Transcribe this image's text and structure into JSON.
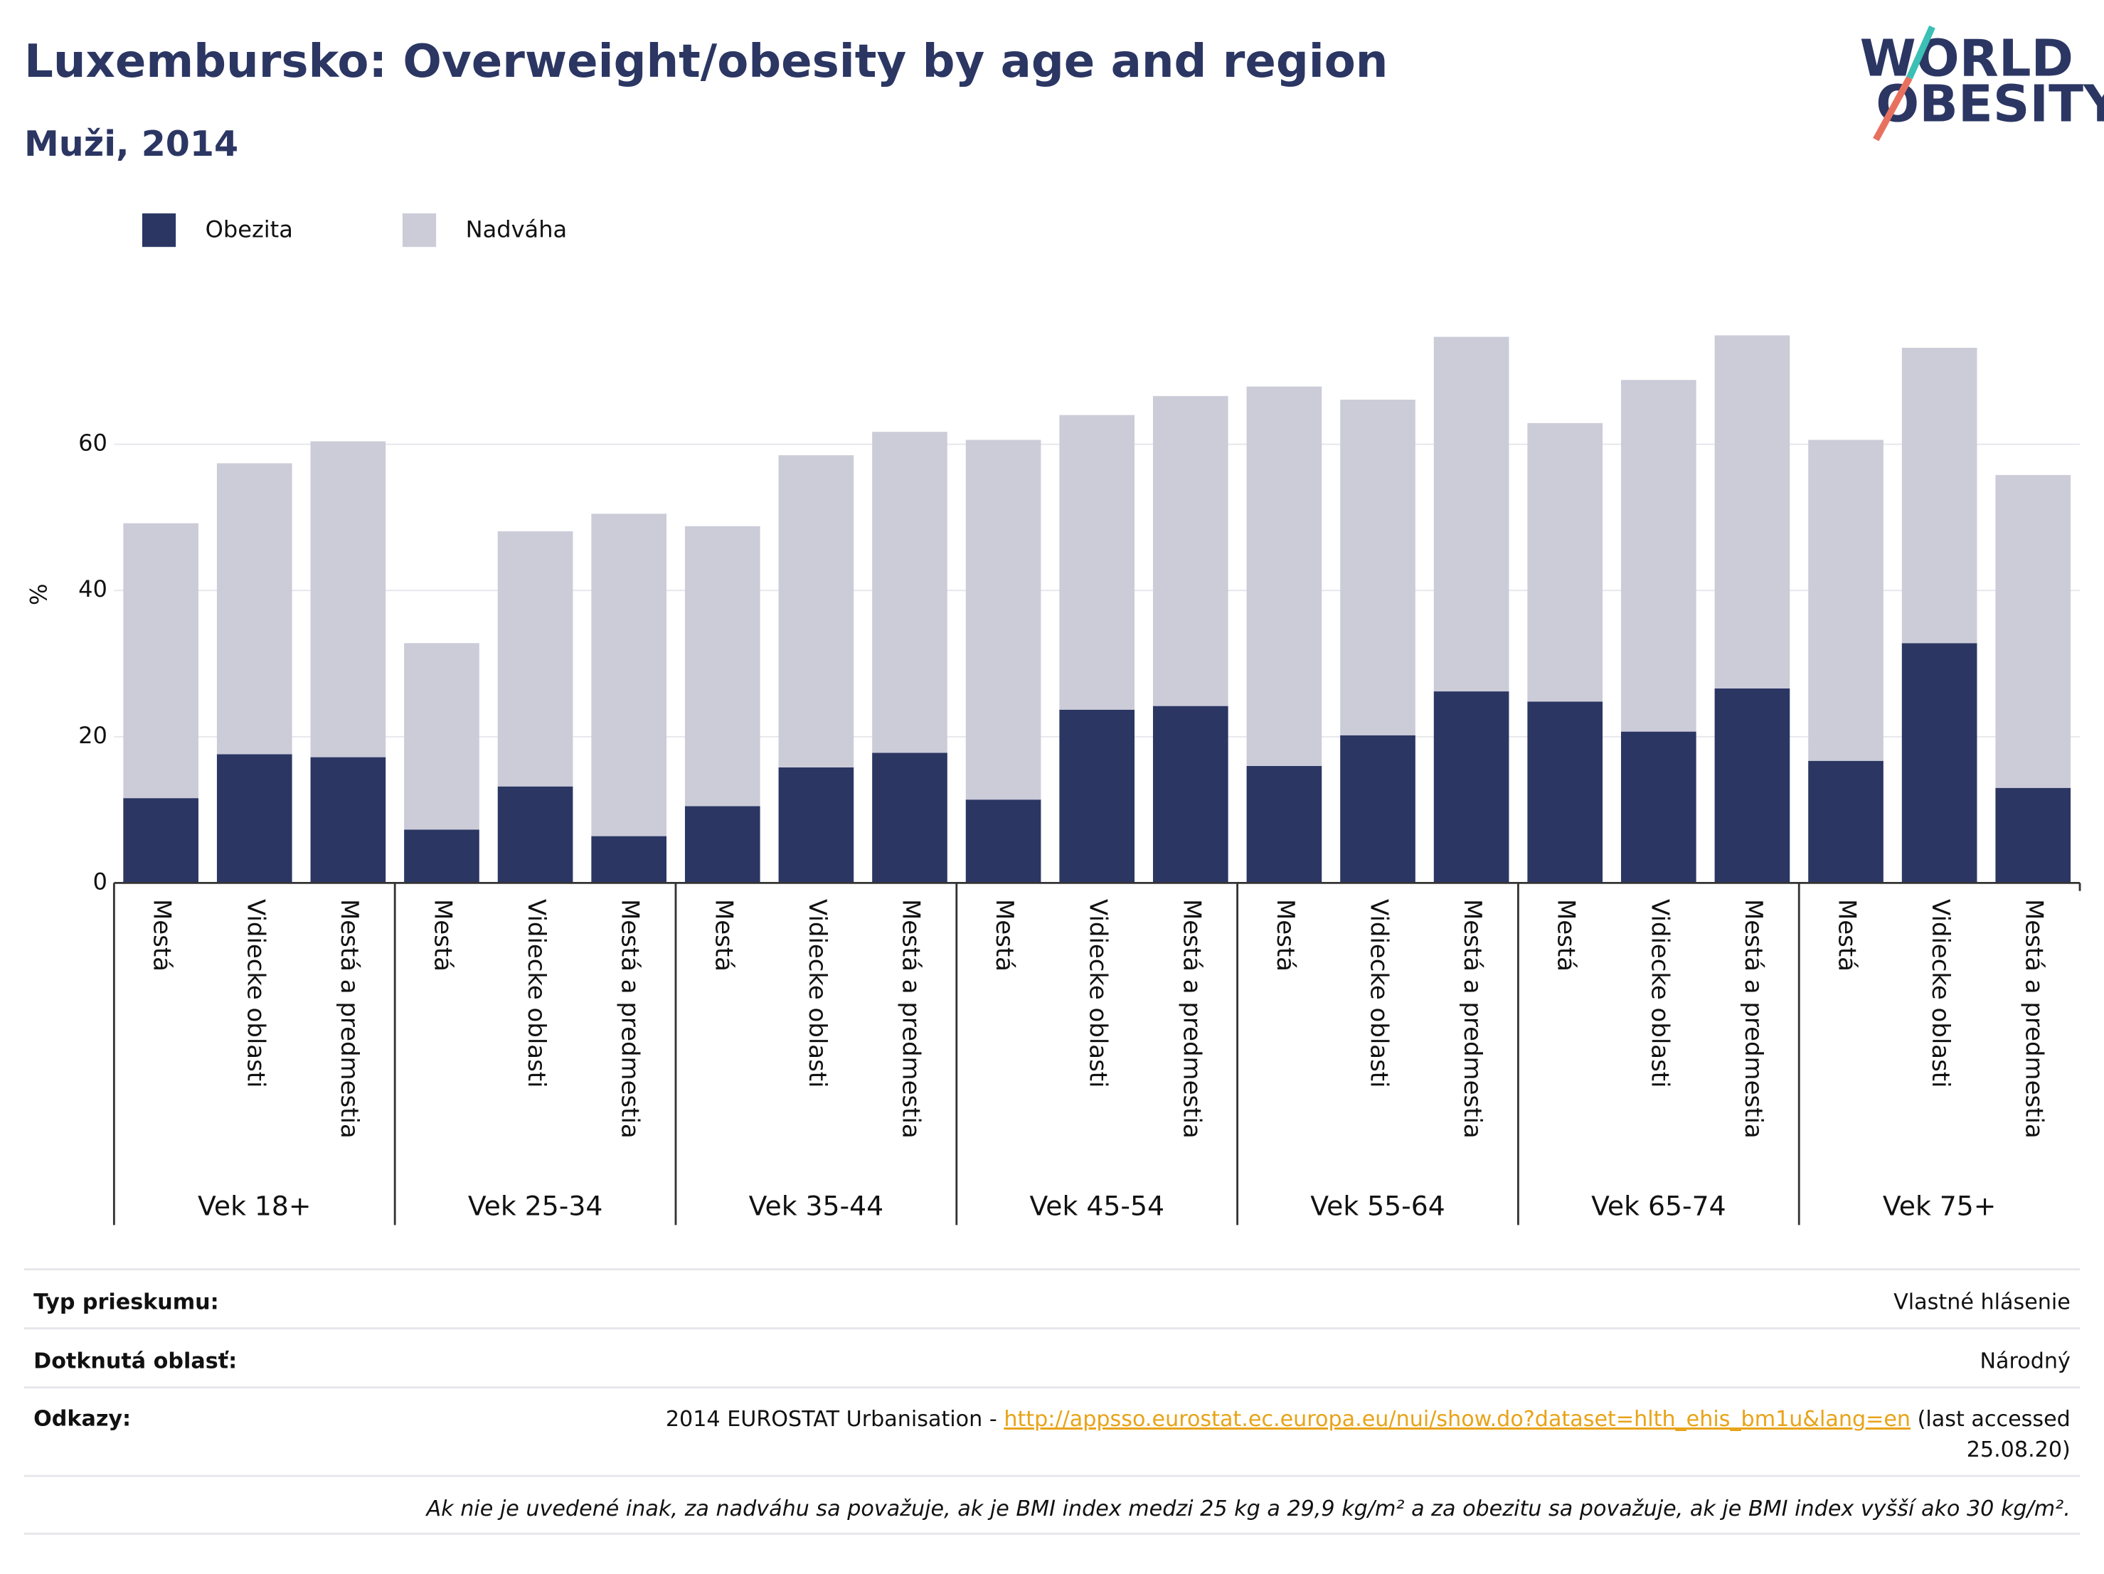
{
  "chart_data": {
    "type": "stacked_bar",
    "title": "Luxembursko: Overweight/obesity by age and region",
    "subtitle": "Muži, 2014",
    "logo": [
      "WORLD",
      "OBESITY"
    ],
    "y_label": "%",
    "groups": [
      "Vek 18+",
      "Vek 25-34",
      "Vek 35-44",
      "Vek 45-54",
      "Vek 55-64",
      "Vek 65-74",
      "Vek 75+"
    ],
    "categories": [
      "Mestá",
      "Vidiecke oblasti",
      "Mestá a predmestia",
      "Mestá",
      "Vidiecke oblasti",
      "Mestá a predmestia",
      "Mestá",
      "Vidiecke oblasti",
      "Mestá a predmestia",
      "Mestá",
      "Vidiecke oblasti",
      "Mestá a predmestia",
      "Mestá",
      "Vidiecke oblasti",
      "Mestá a predmestia",
      "Mestá",
      "Vidiecke oblasti",
      "Mestá a predmestia",
      "Mestá",
      "Vidiecke oblasti",
      "Mestá a predmestia"
    ],
    "series": [
      {
        "name": "Obezita",
        "color": "#2b3663",
        "values": [
          11.6,
          17.6,
          17.2,
          7.3,
          13.2,
          6.4,
          10.5,
          15.8,
          17.8,
          11.4,
          23.7,
          24.2,
          16.0,
          20.2,
          26.2,
          24.8,
          20.7,
          26.6,
          16.7,
          32.8,
          13.0
        ]
      },
      {
        "name": "Nadváha",
        "color": "#cbccd8",
        "values": [
          37.6,
          39.8,
          43.2,
          25.5,
          34.9,
          44.1,
          38.3,
          42.7,
          43.9,
          49.2,
          40.3,
          42.4,
          51.9,
          45.9,
          48.5,
          38.1,
          48.1,
          48.3,
          43.9,
          40.4,
          42.8
        ]
      }
    ],
    "ylim": [
      0,
      78
    ],
    "yticks": [
      0,
      20,
      40,
      60
    ],
    "grid": true,
    "legend": "top-left"
  },
  "footer": {
    "rows": [
      {
        "label": "Typ prieskumu:",
        "value": "Vlastné hlásenie"
      },
      {
        "label": "Dotknutá oblasť:",
        "value": "Národný"
      }
    ],
    "references": {
      "label": "Odkazy:",
      "prefix": "2014 EUROSTAT Urbanisation - ",
      "link": "http://appsso.eurostat.ec.europa.eu/nui/show.do?dataset=hlth_ehis_bm1u&lang=en",
      "suffix": [
        " (last accessed",
        "25.08.20)"
      ]
    },
    "note": "Ak nie je uvedené inak, za nadváhu sa považuje, ak je BMI index medzi 25 kg a 29,9 kg/m² a za obezitu sa považuje, ak je BMI index vyšší ako 30 kg/m²."
  }
}
